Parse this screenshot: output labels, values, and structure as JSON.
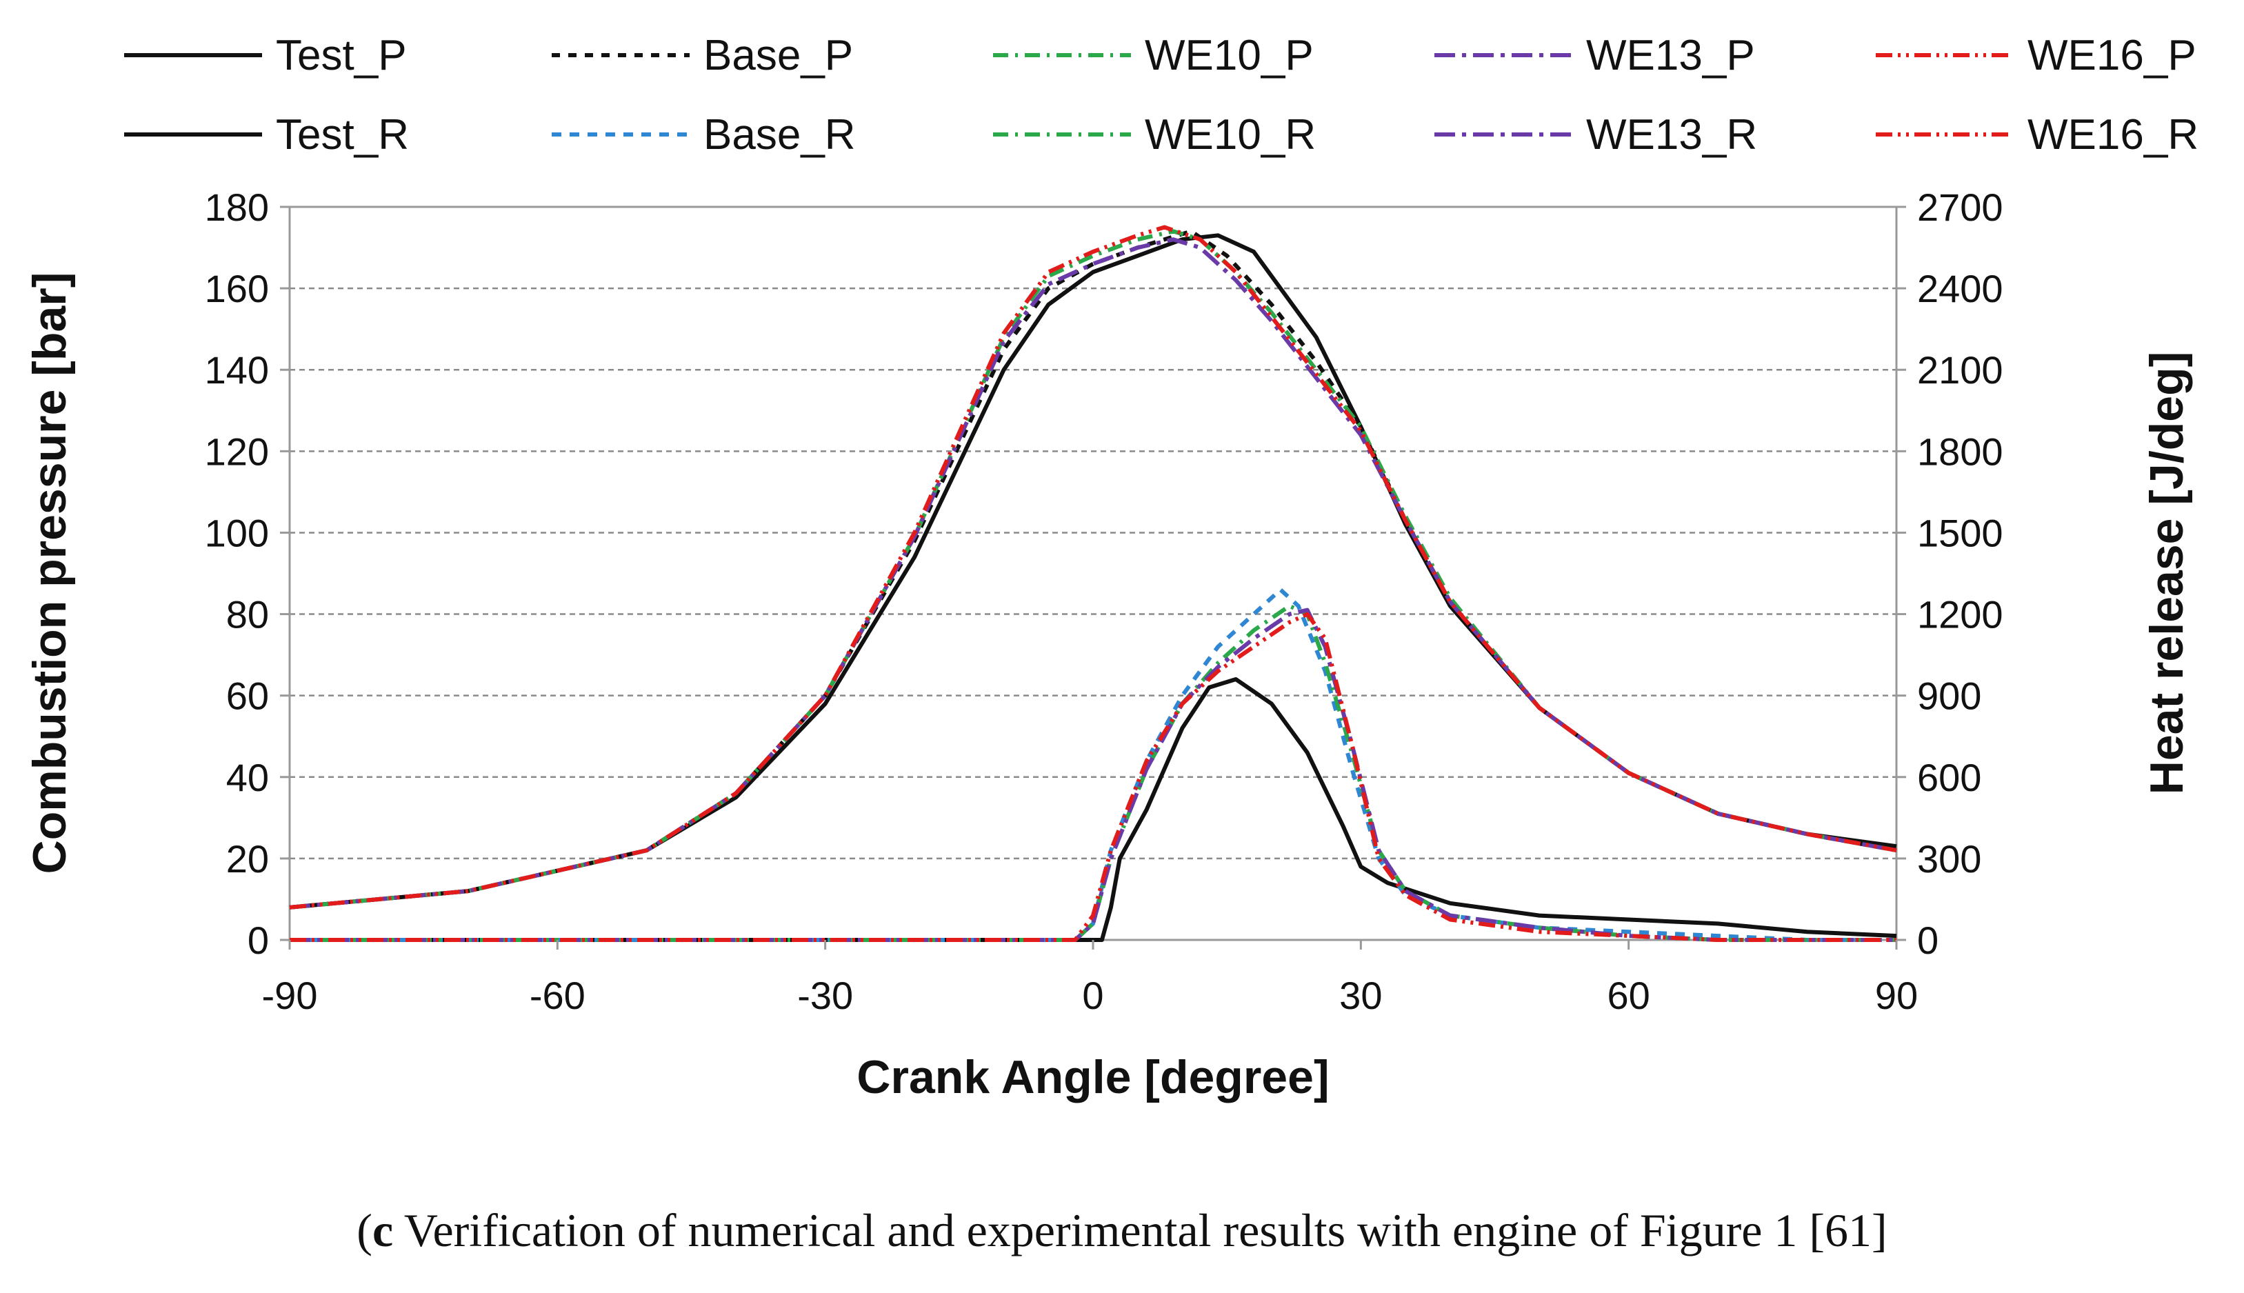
{
  "chart_data": {
    "type": "line",
    "xlabel": "Crank Angle [degree]",
    "ylabel_left": "Combustion pressure [bar]",
    "ylabel_right": "Heat release [J/deg]",
    "xlim": [
      -90,
      90
    ],
    "xticks": [
      -90,
      -60,
      -30,
      0,
      30,
      60,
      90
    ],
    "ylim_left": [
      0,
      180
    ],
    "yticks_left": [
      0,
      20,
      40,
      60,
      80,
      100,
      120,
      140,
      160,
      180
    ],
    "ylim_right": [
      0,
      2700
    ],
    "yticks_right": [
      0,
      300,
      600,
      900,
      1200,
      1500,
      1800,
      2100,
      2400,
      2700
    ],
    "grid": "horizontal dashed",
    "series": [
      {
        "name": "Test_P",
        "axis": "left",
        "color": "#111111",
        "dash": "solid",
        "x": [
          -90,
          -70,
          -50,
          -40,
          -30,
          -20,
          -10,
          -5,
          0,
          5,
          10,
          14,
          18,
          25,
          30,
          35,
          40,
          50,
          60,
          70,
          80,
          90
        ],
        "y": [
          8,
          12,
          22,
          35,
          58,
          94,
          140,
          156,
          164,
          168,
          172,
          173,
          169,
          148,
          126,
          102,
          82,
          57,
          41,
          31,
          26,
          23
        ]
      },
      {
        "name": "Base_P",
        "axis": "left",
        "color": "#111111",
        "dash": "12,12",
        "x": [
          -90,
          -70,
          -50,
          -40,
          -30,
          -20,
          -10,
          -5,
          0,
          5,
          8,
          11,
          15,
          20,
          25,
          30,
          35,
          40,
          50,
          60,
          70,
          80,
          90
        ],
        "y": [
          8,
          12,
          22,
          36,
          60,
          98,
          145,
          160,
          166,
          170,
          172,
          174,
          168,
          156,
          142,
          126,
          103,
          83,
          57,
          41,
          31,
          26,
          22
        ]
      },
      {
        "name": "WE10_P",
        "axis": "left",
        "color": "#2aa84a",
        "dash": "22,10,4,10",
        "x": [
          -90,
          -70,
          -50,
          -40,
          -30,
          -20,
          -10,
          -5,
          0,
          5,
          9,
          12,
          16,
          20,
          25,
          30,
          35,
          40,
          50,
          60,
          70,
          80,
          90
        ],
        "y": [
          8,
          12,
          22,
          36,
          60,
          99,
          148,
          163,
          168,
          172,
          174,
          172,
          164,
          154,
          140,
          126,
          104,
          84,
          57,
          41,
          31,
          26,
          22
        ]
      },
      {
        "name": "WE13_P",
        "axis": "left",
        "color": "#6a3ba8",
        "dash": "30,10,6,10",
        "x": [
          -90,
          -70,
          -50,
          -40,
          -30,
          -20,
          -10,
          -5,
          0,
          5,
          9,
          12,
          16,
          20,
          25,
          30,
          35,
          40,
          50,
          60,
          70,
          80,
          90
        ],
        "y": [
          8,
          12,
          22,
          36,
          60,
          99,
          147,
          161,
          166,
          170,
          172,
          170,
          162,
          152,
          138,
          124,
          103,
          83,
          57,
          41,
          31,
          26,
          22
        ]
      },
      {
        "name": "WE16_P",
        "axis": "left",
        "color": "#e21b1b",
        "dash": "24,8,4,8,4,8",
        "x": [
          -90,
          -70,
          -50,
          -40,
          -30,
          -20,
          -10,
          -5,
          0,
          5,
          8,
          12,
          16,
          20,
          25,
          30,
          35,
          40,
          50,
          60,
          70,
          80,
          90
        ],
        "y": [
          8,
          12,
          22,
          36,
          60,
          100,
          149,
          164,
          169,
          173,
          175,
          172,
          164,
          153,
          139,
          125,
          103,
          83,
          57,
          41,
          31,
          26,
          22
        ]
      },
      {
        "name": "Test_R",
        "axis": "right",
        "color": "#111111",
        "dash": "solid",
        "x": [
          -90,
          0,
          1,
          2,
          3,
          6,
          10,
          13,
          16,
          20,
          24,
          28,
          30,
          33,
          40,
          50,
          60,
          70,
          80,
          90
        ],
        "y": [
          0,
          0,
          0,
          120,
          300,
          480,
          780,
          930,
          960,
          870,
          690,
          420,
          270,
          210,
          135,
          90,
          75,
          60,
          30,
          15
        ]
      },
      {
        "name": "Base_R",
        "axis": "right",
        "color": "#2f86d2",
        "dash": "14,12",
        "x": [
          -90,
          -2,
          0,
          2,
          6,
          10,
          14,
          18,
          21,
          23,
          26,
          29,
          32,
          35,
          40,
          50,
          60,
          70,
          80,
          90
        ],
        "y": [
          0,
          0,
          60,
          330,
          660,
          900,
          1080,
          1200,
          1290,
          1230,
          990,
          630,
          300,
          165,
          90,
          45,
          30,
          15,
          0,
          0
        ]
      },
      {
        "name": "WE10_R",
        "axis": "right",
        "color": "#2aa84a",
        "dash": "22,10,4,10",
        "x": [
          -90,
          -2,
          0,
          2,
          6,
          10,
          14,
          18,
          22,
          24,
          26,
          29,
          32,
          35,
          40,
          50,
          60,
          70,
          80,
          90
        ],
        "y": [
          0,
          0,
          60,
          300,
          630,
          870,
          1020,
          1140,
          1230,
          1200,
          1020,
          690,
          330,
          180,
          90,
          45,
          15,
          0,
          0,
          0
        ]
      },
      {
        "name": "WE13_R",
        "axis": "right",
        "color": "#6a3ba8",
        "dash": "30,10,6,10",
        "x": [
          -90,
          -2,
          0,
          2,
          6,
          10,
          14,
          18,
          22,
          24,
          26,
          29,
          32,
          35,
          40,
          50,
          60,
          70,
          80,
          90
        ],
        "y": [
          0,
          0,
          60,
          300,
          630,
          870,
          1005,
          1110,
          1200,
          1215,
          1080,
          720,
          330,
          180,
          90,
          45,
          15,
          0,
          0,
          0
        ]
      },
      {
        "name": "WE16_R",
        "axis": "right",
        "color": "#e21b1b",
        "dash": "24,8,4,8,4,8",
        "x": [
          -90,
          -2,
          0,
          2,
          6,
          10,
          14,
          18,
          22,
          24,
          26,
          29,
          32,
          35,
          40,
          50,
          60,
          70,
          80,
          90
        ],
        "y": [
          0,
          0,
          90,
          330,
          660,
          870,
          990,
          1080,
          1170,
          1200,
          1110,
          720,
          300,
          165,
          75,
          30,
          15,
          0,
          0,
          0
        ]
      }
    ],
    "legend": {
      "placement": "top",
      "rows": [
        [
          "Test_P",
          "Base_P",
          "WE10_P",
          "WE13_P",
          "WE16_P"
        ],
        [
          "Test_R",
          "Base_R",
          "WE10_R",
          "WE13_R",
          "WE16_R"
        ]
      ]
    }
  },
  "caption": {
    "label": "c",
    "text": " Verification of numerical and experimental results with engine of Figure 1 [61]"
  }
}
